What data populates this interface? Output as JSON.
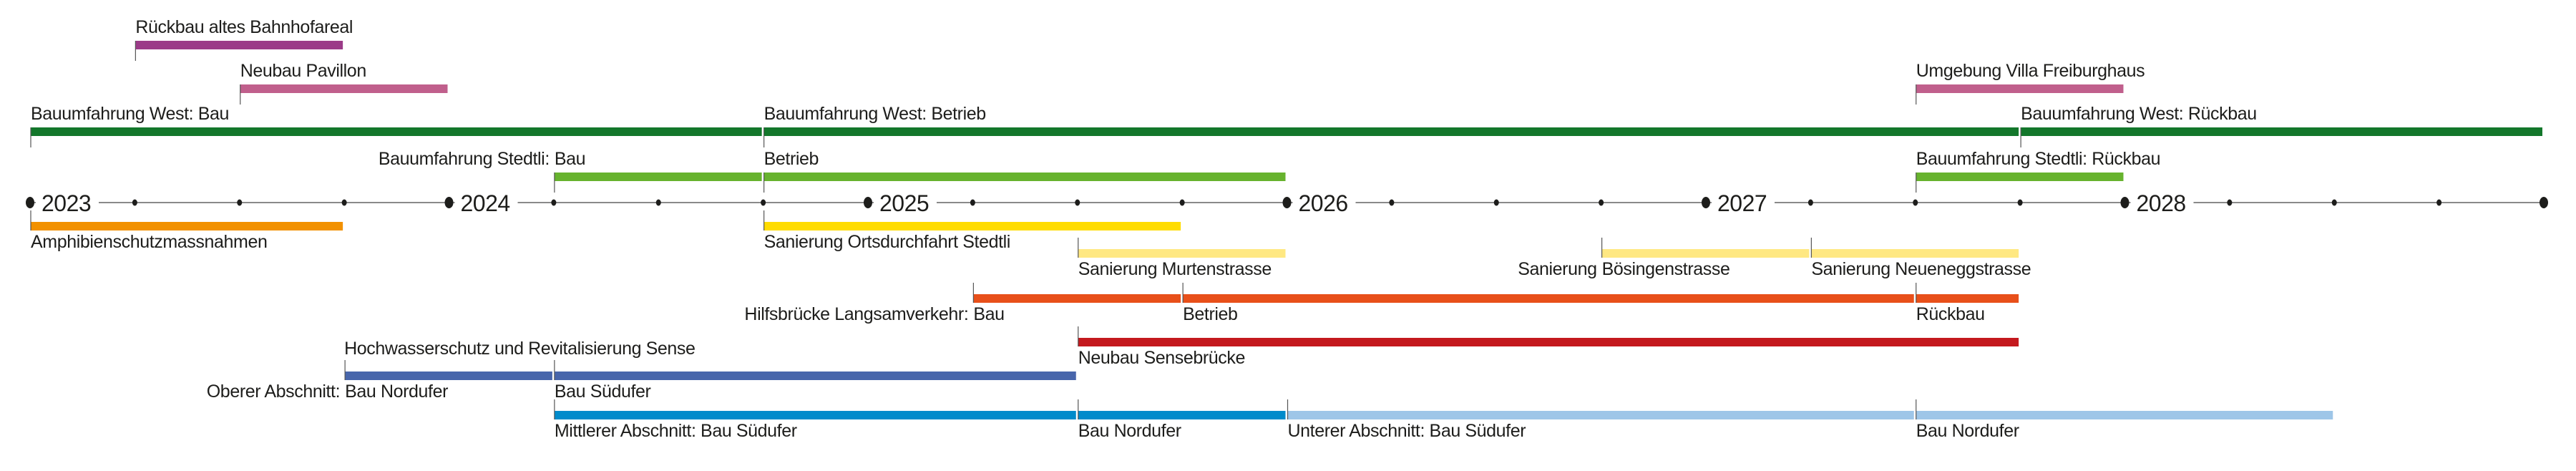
{
  "chart_data": {
    "type": "timeline",
    "axis": {
      "start": 2023,
      "end": 2029,
      "year_labels": [
        "2023",
        "2024",
        "2025",
        "2026",
        "2027",
        "2028"
      ],
      "minor_ticks": "quarterly",
      "line_color": "#8a8a8a",
      "dot_color": "#1d1d1b"
    },
    "lanes": [
      {
        "side": "above",
        "items": [
          {
            "label": "Rückbau altes Bahnhofareal",
            "start": "2023-04",
            "end": "2023-10",
            "color": "#9b3b88"
          }
        ]
      },
      {
        "side": "above",
        "items": [
          {
            "label": "Neubau Pavillon",
            "start": "2023-07",
            "end": "2024-01",
            "color": "#c05f8c"
          },
          {
            "label": "Umgebung Villa Freiburghaus",
            "start": "2027-07",
            "end": "2028-01",
            "color": "#c05f8c"
          }
        ]
      },
      {
        "side": "above",
        "items": [
          {
            "label": "Bauumfahrung West: Bau",
            "start": "2023-01",
            "end": "2024-10",
            "color": "#13772b"
          },
          {
            "label": "Bauumfahrung West: Betrieb",
            "start": "2024-10",
            "end": "2027-10",
            "color": "#13772b"
          },
          {
            "label": "Bauumfahrung West: Rückbau",
            "start": "2027-10",
            "end": "2029-01",
            "color": "#13772b"
          }
        ]
      },
      {
        "side": "above",
        "items": [
          {
            "prefix": "Bauumfahrung Stedtli:",
            "label": "Bau",
            "start": "2024-04",
            "end": "2024-10",
            "color": "#67b32e"
          },
          {
            "label": "Betrieb",
            "start": "2024-10",
            "end": "2026-01",
            "color": "#67b32e"
          },
          {
            "label": "Bauumfahrung Stedtli: Rückbau",
            "start": "2027-07",
            "end": "2028-01",
            "color": "#67b32e"
          }
        ]
      },
      {
        "side": "below",
        "items": [
          {
            "label": "Amphibienschutzmassnahmen",
            "start": "2023-01",
            "end": "2023-10",
            "color": "#f29100"
          },
          {
            "label": "Sanierung Ortsdurchfahrt Stedtli",
            "start": "2024-10",
            "end": "2025-10",
            "color": "#ffdc00"
          }
        ]
      },
      {
        "side": "below",
        "items": [
          {
            "label": "Sanierung Murtenstrasse",
            "start": "2025-07",
            "end": "2026-01",
            "color": "#ffe882"
          },
          {
            "prefix": "Sanierung",
            "label": "Bösingenstrasse",
            "start": "2026-10",
            "end": "2027-04",
            "color": "#ffe882"
          },
          {
            "label": "Sanierung Neueneggstrasse",
            "start": "2027-04",
            "end": "2027-10",
            "color": "#ffe882"
          }
        ]
      },
      {
        "side": "below",
        "items": [
          {
            "prefix": "Hilfsbrücke Langsamverkehr:",
            "label": "Bau",
            "start": "2025-04",
            "end": "2025-10",
            "color": "#e8501a"
          },
          {
            "label": "Betrieb",
            "start": "2025-10",
            "end": "2027-07",
            "color": "#e8501a"
          },
          {
            "label": "Rückbau",
            "start": "2027-07",
            "end": "2027-10",
            "color": "#e8501a"
          }
        ]
      },
      {
        "side": "below",
        "items": [
          {
            "label": "Neubau Sensebrücke",
            "start": "2025-07",
            "end": "2027-10",
            "color": "#c4191e"
          }
        ]
      },
      {
        "side": "below",
        "group_title": "Hochwasserschutz und Revitalisierung Sense",
        "items": [
          {
            "prefix": "Oberer Abschnitt:",
            "label": "Bau Nordufer",
            "start": "2023-10",
            "end": "2024-04",
            "color": "#4866ab"
          },
          {
            "label": "Bau Südufer",
            "start": "2024-04",
            "end": "2025-07",
            "color": "#4866ab"
          }
        ]
      },
      {
        "side": "below",
        "items": [
          {
            "label": "Mittlerer Abschnitt: Bau Südufer",
            "start": "2024-04",
            "end": "2025-07",
            "color": "#008bcb"
          },
          {
            "label": "Bau Nordufer",
            "start": "2025-07",
            "end": "2026-01",
            "color": "#008bcb"
          },
          {
            "label": "Unterer Abschnitt: Bau Südufer",
            "start": "2026-01",
            "end": "2027-07",
            "color": "#9ec6e8"
          },
          {
            "label": "Bau Nordufer",
            "start": "2027-07",
            "end": "2028-07",
            "color": "#9ec6e8"
          }
        ]
      }
    ]
  }
}
